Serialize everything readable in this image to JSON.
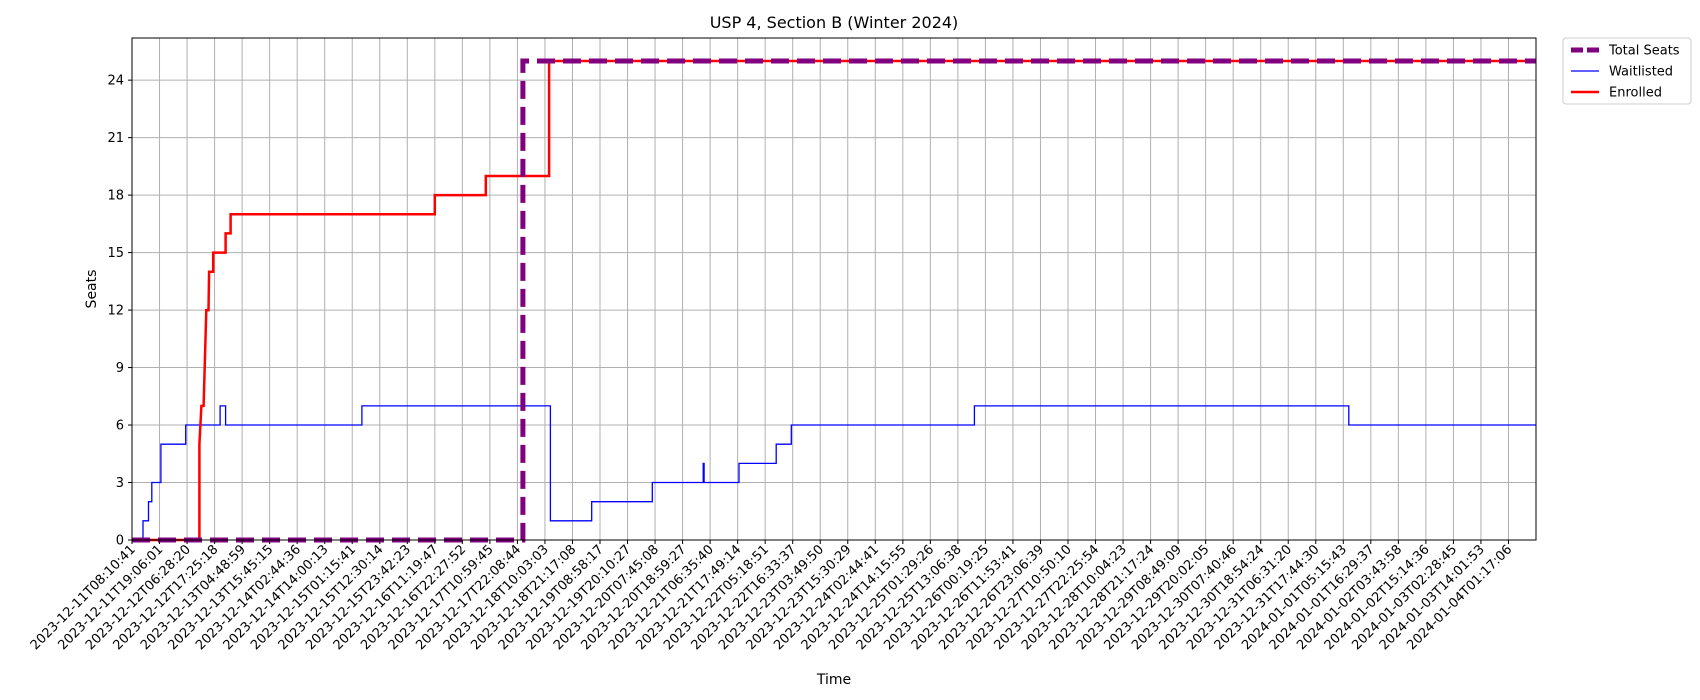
{
  "chart_data": {
    "type": "line",
    "title": "USP 4, Section B (Winter 2024)",
    "xlabel": "Time",
    "ylabel": "Seats",
    "ylim": [
      0,
      26.2
    ],
    "yticks": [
      0,
      3,
      6,
      9,
      12,
      15,
      18,
      21,
      24
    ],
    "grid": true,
    "legend_position": "outside-top-right",
    "x_tick_labels": [
      "2023-12-11T08:10:41",
      "2023-12-11T19:06:01",
      "2023-12-12T06:28:20",
      "2023-12-12T17:25:18",
      "2023-12-13T04:48:59",
      "2023-12-13T15:45:15",
      "2023-12-14T02:44:36",
      "2023-12-14T14:00:13",
      "2023-12-15T01:15:41",
      "2023-12-15T12:30:14",
      "2023-12-15T23:42:23",
      "2023-12-16T11:19:47",
      "2023-12-16T22:27:52",
      "2023-12-17T10:59:45",
      "2023-12-17T22:08:44",
      "2023-12-18T10:03:03",
      "2023-12-18T21:17:08",
      "2023-12-19T08:58:17",
      "2023-12-19T20:10:27",
      "2023-12-20T07:45:08",
      "2023-12-20T18:59:27",
      "2023-12-21T06:35:40",
      "2023-12-21T17:49:14",
      "2023-12-22T05:18:51",
      "2023-12-22T16:33:37",
      "2023-12-23T03:49:50",
      "2023-12-23T15:30:29",
      "2023-12-24T02:44:41",
      "2023-12-24T14:15:55",
      "2023-12-25T01:29:26",
      "2023-12-25T13:06:38",
      "2023-12-26T00:19:25",
      "2023-12-26T11:53:41",
      "2023-12-26T23:06:39",
      "2023-12-27T10:50:10",
      "2023-12-27T22:25:54",
      "2023-12-28T10:04:23",
      "2023-12-28T21:17:24",
      "2023-12-29T08:49:09",
      "2023-12-29T20:02:05",
      "2023-12-30T07:40:46",
      "2023-12-30T18:54:24",
      "2023-12-31T06:31:20",
      "2023-12-31T17:44:30",
      "2024-01-01T05:15:43",
      "2024-01-01T16:29:37",
      "2024-01-02T03:43:58",
      "2024-01-02T15:14:36",
      "2024-01-03T02:28:45",
      "2024-01-03T14:01:53",
      "2024-01-04T01:17:06"
    ],
    "x_range": [
      0,
      51
    ],
    "series": [
      {
        "name": "Total Seats",
        "color": "#800080",
        "style": "dashed",
        "steps": [
          [
            0,
            0
          ],
          [
            14.2,
            0
          ],
          [
            14.2,
            25
          ],
          [
            51,
            25
          ]
        ]
      },
      {
        "name": "Waitlisted",
        "color": "#0000ff",
        "style": "solid",
        "steps": [
          [
            0,
            0
          ],
          [
            0.4,
            0
          ],
          [
            0.4,
            1
          ],
          [
            0.6,
            1
          ],
          [
            0.6,
            2
          ],
          [
            0.72,
            2
          ],
          [
            0.72,
            3
          ],
          [
            1.05,
            3
          ],
          [
            1.05,
            5
          ],
          [
            1.95,
            5
          ],
          [
            1.95,
            6
          ],
          [
            3.2,
            6
          ],
          [
            3.2,
            7
          ],
          [
            3.4,
            7
          ],
          [
            3.4,
            6
          ],
          [
            8.35,
            6
          ],
          [
            8.35,
            7
          ],
          [
            15.2,
            7
          ],
          [
            15.2,
            1
          ],
          [
            16.7,
            1
          ],
          [
            16.7,
            2
          ],
          [
            18.9,
            2
          ],
          [
            18.9,
            3
          ],
          [
            20.75,
            3
          ],
          [
            20.75,
            4
          ],
          [
            20.78,
            4
          ],
          [
            20.78,
            3
          ],
          [
            22.05,
            3
          ],
          [
            22.05,
            4
          ],
          [
            23.4,
            4
          ],
          [
            23.4,
            5
          ],
          [
            23.95,
            5
          ],
          [
            23.95,
            6
          ],
          [
            30.6,
            6
          ],
          [
            30.6,
            7
          ],
          [
            44.2,
            7
          ],
          [
            44.2,
            6
          ],
          [
            51,
            6
          ]
        ]
      },
      {
        "name": "Enrolled",
        "color": "#ff0000",
        "style": "solid",
        "steps": [
          [
            0,
            0
          ],
          [
            2.45,
            0
          ],
          [
            2.45,
            5
          ],
          [
            2.52,
            7
          ],
          [
            2.6,
            7
          ],
          [
            2.7,
            12
          ],
          [
            2.78,
            12
          ],
          [
            2.8,
            14
          ],
          [
            2.95,
            14
          ],
          [
            2.95,
            15
          ],
          [
            3.4,
            15
          ],
          [
            3.4,
            16
          ],
          [
            3.58,
            16
          ],
          [
            3.58,
            17
          ],
          [
            11.0,
            17
          ],
          [
            11.0,
            18
          ],
          [
            12.85,
            18
          ],
          [
            12.85,
            19
          ],
          [
            15.15,
            19
          ],
          [
            15.15,
            25
          ],
          [
            51,
            25
          ]
        ]
      }
    ]
  }
}
